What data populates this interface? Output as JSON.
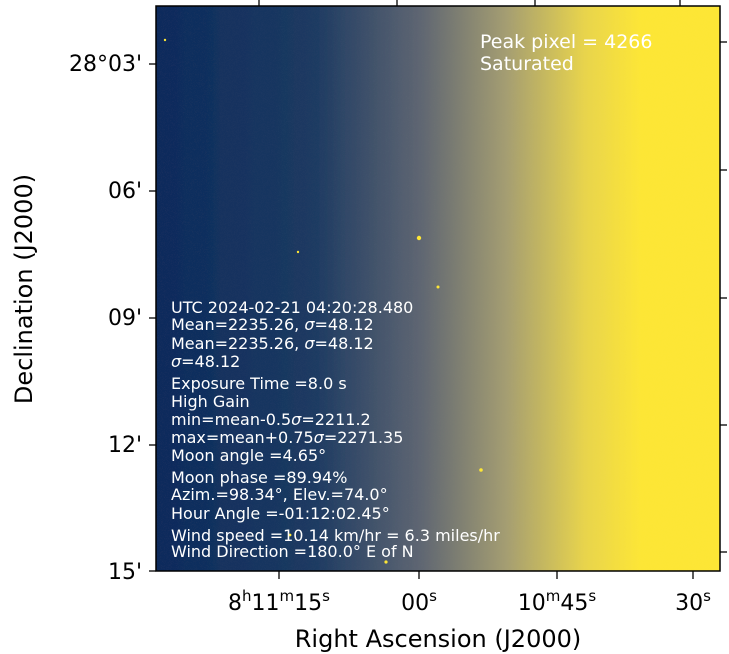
{
  "axes": {
    "xlabel": "Right Ascension (J2000)",
    "ylabel": "Declination (J2000)",
    "x_ticks": [
      {
        "h": "8",
        "hs": "h",
        "m": "11",
        "ms": "m",
        "s": "15",
        "ss": "s"
      },
      {
        "h": "",
        "hs": "",
        "m": "",
        "ms": "",
        "s": "00",
        "ss": "s"
      },
      {
        "h": "",
        "hs": "",
        "m": "10",
        "ms": "m",
        "s": "45",
        "ss": "s"
      },
      {
        "h": "",
        "hs": "",
        "m": "",
        "ms": "",
        "s": "30",
        "ss": "s"
      }
    ],
    "y_ticks": [
      "28°03'",
      "06'",
      "09'",
      "12'",
      "15'"
    ]
  },
  "peak": {
    "line1": "Peak pixel = 4266",
    "line2": "Saturated"
  },
  "info_lines": [
    {
      "pre": "UTC  2024-02-21  04:20:28.480"
    },
    {
      "pre": "Mean=2235.26,  ",
      "sym": "σ",
      "post": "=48.12"
    },
    {
      "pre": "Mean=2235.26,  ",
      "sym": "σ",
      "post": "=48.12"
    },
    {
      "pre": "",
      "sym": "σ",
      "post": "=48.12"
    },
    {
      "pre": "Exposure Time =8.0 s"
    },
    {
      "pre": "High Gain"
    },
    {
      "pre": "min=mean-0.5",
      "sym": "σ",
      "post": "=2211.2"
    },
    {
      "pre": "max=mean+0.75",
      "sym": "σ",
      "post": "=2271.35"
    },
    {
      "pre": "Moon angle =4.65°"
    },
    {
      "pre": "Moon phase =89.94%"
    },
    {
      "pre": "Azim.=98.34°, Elev.=74.0°"
    },
    {
      "pre": "Hour Angle =-01:12:02.45°"
    },
    {
      "pre": "Wind speed =10.14 km/hr = 6.3 miles/hr"
    },
    {
      "pre": "Wind Direction =180.0° E of N"
    }
  ],
  "colors": {
    "dark": "#0b2a5c",
    "mid": "#7a7b78",
    "bright": "#fde636"
  }
}
